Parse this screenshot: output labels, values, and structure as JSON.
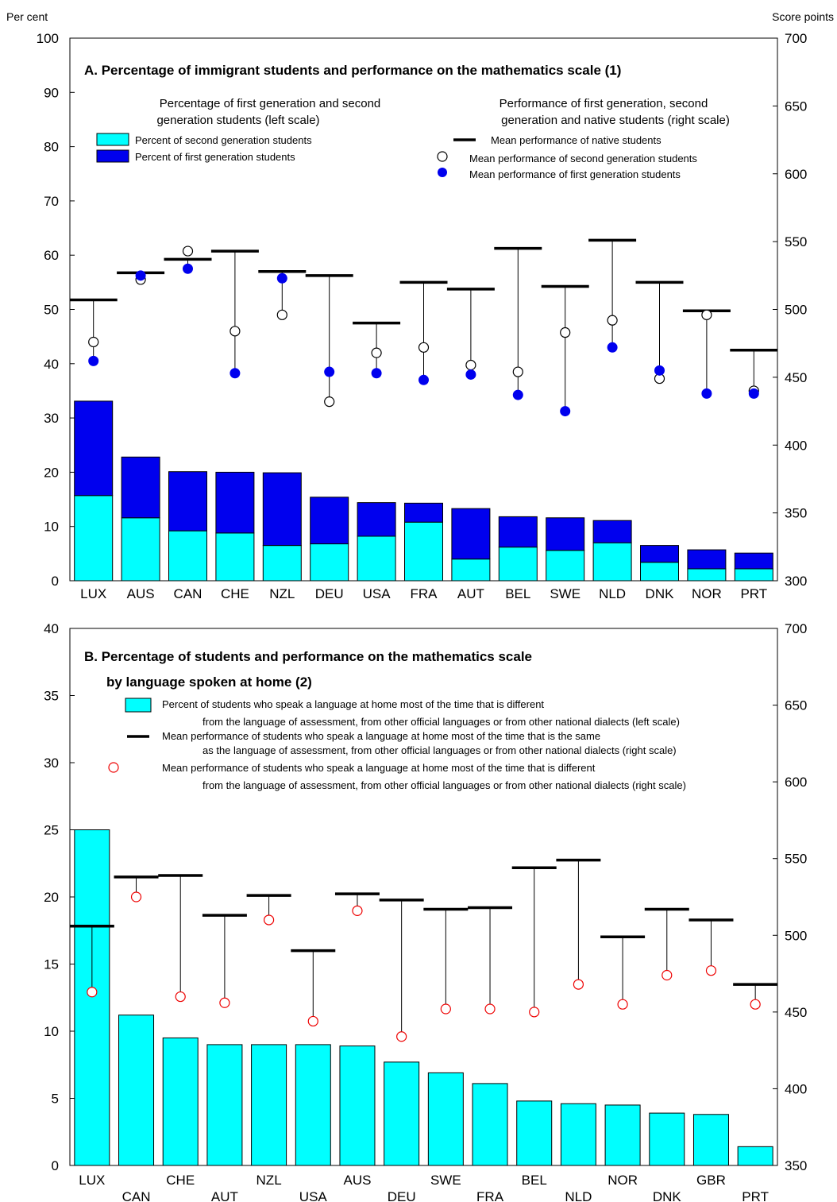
{
  "left_unit": "Per cent",
  "right_unit": "Score points",
  "colors": {
    "second_generation": "#00FFFF",
    "first_generation": "#0000EE",
    "native_mean_line": "#000000",
    "first_generation_dot": "#0000EE",
    "different_language_circle": "#EE0000"
  },
  "chart_data": [
    {
      "type": "bar",
      "title": "A. Percentage of immigrant students and performance on the mathematics scale (1)",
      "ylabel_left": "Per cent",
      "ylabel_right": "Score points",
      "ylim_left": [
        0,
        100
      ],
      "ylim_right": [
        300,
        700
      ],
      "yticks_left": [
        "0",
        "10",
        "20",
        "30",
        "40",
        "50",
        "60",
        "70",
        "80",
        "90",
        "100"
      ],
      "yticks_right": [
        "300",
        "350",
        "400",
        "450",
        "500",
        "550",
        "600",
        "650",
        "700"
      ],
      "legend_left_heading": [
        "Percentage of first generation and second",
        "generation students (left scale)"
      ],
      "legend_right_heading": [
        "Performance of first generation, second",
        "generation and native students (right scale)"
      ],
      "categories": [
        "LUX",
        "AUS",
        "CAN",
        "CHE",
        "NZL",
        "DEU",
        "USA",
        "FRA",
        "AUT",
        "BEL",
        "SWE",
        "NLD",
        "DNK",
        "NOR",
        "PRT"
      ],
      "series": [
        {
          "name": "Percent of second generation students",
          "axis": "left",
          "kind": "stacked-bar",
          "values": [
            15.7,
            11.6,
            9.2,
            8.8,
            6.5,
            6.8,
            8.2,
            10.8,
            4.0,
            6.2,
            5.6,
            7.0,
            3.4,
            2.2,
            2.2
          ]
        },
        {
          "name": "Percent of first generation students",
          "axis": "left",
          "kind": "stacked-bar",
          "values": [
            17.4,
            11.2,
            10.9,
            11.2,
            13.4,
            8.6,
            6.2,
            3.5,
            9.3,
            5.6,
            6.0,
            4.1,
            3.1,
            3.5,
            2.9
          ]
        },
        {
          "name": "Mean performance of native students",
          "axis": "right",
          "kind": "marker-dash",
          "values": [
            507,
            527,
            537,
            543,
            528,
            525,
            490,
            520,
            515,
            545,
            517,
            551,
            520,
            499,
            470
          ]
        },
        {
          "name": "Mean performance of second generation students",
          "axis": "right",
          "kind": "open-circle",
          "values": [
            476,
            522,
            543,
            484,
            496,
            432,
            468,
            472,
            459,
            454,
            483,
            492,
            449,
            496,
            440
          ]
        },
        {
          "name": "Mean performance of first generation students",
          "axis": "right",
          "kind": "filled-circle",
          "values": [
            462,
            525,
            530,
            453,
            523,
            454,
            453,
            448,
            452,
            437,
            425,
            472,
            455,
            438,
            438
          ]
        }
      ]
    },
    {
      "type": "bar",
      "title": [
        "B. Percentage of students and performance on the mathematics scale",
        "by language spoken at home (2)"
      ],
      "ylim_left": [
        0,
        40
      ],
      "ylim_right": [
        350,
        700
      ],
      "yticks_left": [
        "0",
        "5",
        "10",
        "15",
        "20",
        "25",
        "30",
        "35",
        "40"
      ],
      "yticks_right": [
        "350",
        "400",
        "450",
        "500",
        "550",
        "600",
        "650",
        "700"
      ],
      "categories": [
        "LUX",
        "CAN",
        "CHE",
        "AUT",
        "NZL",
        "USA",
        "AUS",
        "DEU",
        "SWE",
        "FRA",
        "BEL",
        "NLD",
        "NOR",
        "DNK",
        "GBR",
        "PRT"
      ],
      "legend": [
        {
          "name_lines": [
            "Percent of students who speak a language at home most of the time that is different",
            "from the language of assessment, from other official languages or from other national dialects (left scale)"
          ]
        },
        {
          "name_lines": [
            "Mean performance of students who speak a language at home most of the time that is the same",
            "as the language of assessment, from other official languages or from other national dialects (right scale)"
          ]
        },
        {
          "name_lines": [
            "Mean performance of students who speak a language at home most of the time that is different",
            "from the language of assessment, from other official languages or from other national dialects (right scale)"
          ]
        }
      ],
      "series": [
        {
          "name": "Percent of students who speak a language at home most of the time that is different from the language of assessment, from other official languages or from other national dialects (left scale)",
          "axis": "left",
          "kind": "bar",
          "values": [
            25.0,
            11.2,
            9.5,
            9.0,
            9.0,
            9.0,
            8.9,
            7.7,
            6.9,
            6.1,
            4.8,
            4.6,
            4.5,
            3.9,
            3.8,
            1.4
          ]
        },
        {
          "name": "Mean performance of students who speak a language at home most of the time that is the same as the language of assessment, from other official languages or from other national dialects (right scale)",
          "axis": "right",
          "kind": "marker-dash",
          "values": [
            506,
            538,
            539,
            513,
            526,
            490,
            527,
            523,
            517,
            518,
            544,
            549,
            499,
            517,
            510,
            468
          ]
        },
        {
          "name": "Mean performance of students who speak a language at home most of the time that is different from the language of assessment, from other official languages or from other national dialects (right scale)",
          "axis": "right",
          "kind": "open-circle",
          "values": [
            463,
            525,
            460,
            456,
            510,
            444,
            516,
            434,
            452,
            452,
            450,
            468,
            455,
            474,
            477,
            455
          ]
        }
      ]
    }
  ]
}
